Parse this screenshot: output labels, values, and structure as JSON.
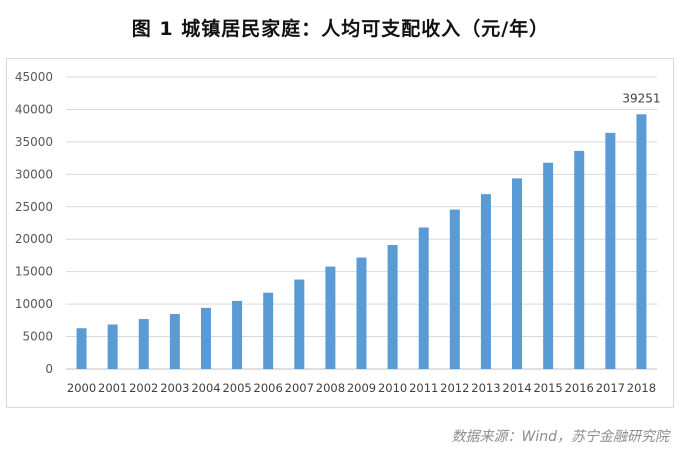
{
  "header": {
    "title": "图 1  城镇居民家庭：人均可支配收入（元/年）"
  },
  "footer": {
    "source": "数据来源：Wind，苏宁金融研究院"
  },
  "chart_data": {
    "type": "bar",
    "title": "图 1  城镇居民家庭：人均可支配收入（元/年）",
    "categories": [
      "2000",
      "2001",
      "2002",
      "2003",
      "2004",
      "2005",
      "2006",
      "2007",
      "2008",
      "2009",
      "2010",
      "2011",
      "2012",
      "2013",
      "2014",
      "2015",
      "2016",
      "2017",
      "2018"
    ],
    "values": [
      6280,
      6860,
      7703,
      8472,
      9422,
      10493,
      11759,
      13786,
      15781,
      17175,
      19109,
      21810,
      24565,
      26955,
      29381,
      31790,
      33616,
      36396,
      39251
    ],
    "ylim": [
      0,
      45000
    ],
    "yticks": [
      0,
      5000,
      10000,
      15000,
      20000,
      25000,
      30000,
      35000,
      40000,
      45000
    ],
    "data_labels": [
      {
        "category": "2018",
        "text": "39251"
      }
    ],
    "grid": true,
    "legend": "none",
    "bar_color": "#5b9bd5"
  }
}
